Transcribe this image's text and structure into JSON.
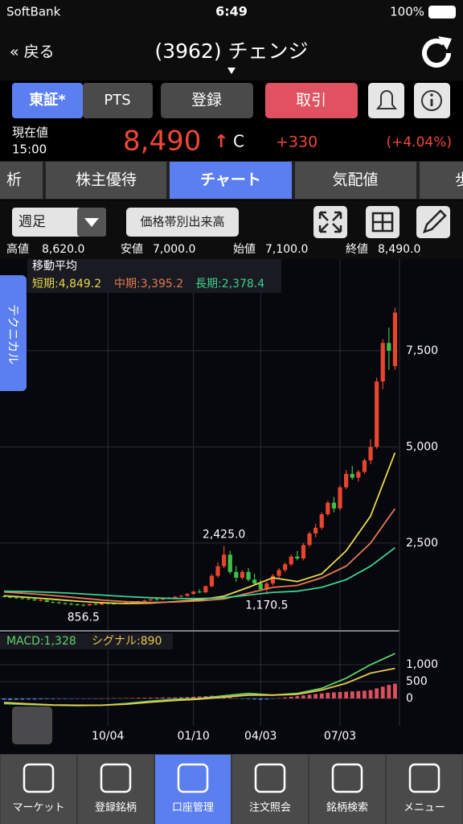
{
  "status_bar": {
    "carrier": "SoftBank",
    "time": "6:49",
    "battery": "100%"
  },
  "nav": {
    "back": "« 戻る",
    "title": "(3962) チェンジ"
  },
  "buttons": [
    "東証*",
    "PTS",
    "登録",
    "取引"
  ],
  "quote": {
    "label": "現在値",
    "time": "15:00",
    "price": "8,490",
    "arrow": "↑",
    "flag": "C",
    "change": "+330",
    "change_pct": "(+4.04%)"
  },
  "tabs": [
    "析",
    "株主優待",
    "チャート",
    "気配値",
    "歩"
  ],
  "toolbar": {
    "period": "週足",
    "volume_profile": "価格帯別出来高"
  },
  "summary": [
    [
      "高値",
      "8,620.0"
    ],
    [
      "安値",
      "7,000.0"
    ],
    [
      "始値",
      "7,100.0"
    ],
    [
      "終値",
      "8,490.0"
    ]
  ],
  "side_tab": "テクニカル",
  "chart_data": [
    {
      "type": "candlestick",
      "title": "移動平均",
      "x": [
        0,
        4,
        8,
        12,
        16,
        20,
        24,
        28,
        32,
        36,
        40,
        44,
        48,
        52,
        56,
        60,
        64
      ],
      "ohlc": [
        [
          1120,
          1150,
          1080,
          1100
        ],
        [
          1100,
          1130,
          1070,
          1090
        ],
        [
          1090,
          1110,
          1050,
          1070
        ],
        [
          1070,
          1100,
          1040,
          1060
        ],
        [
          1060,
          1080,
          1020,
          1040
        ],
        [
          1040,
          1060,
          1000,
          1010
        ],
        [
          1010,
          1040,
          980,
          1020
        ],
        [
          1020,
          1030,
          960,
          970
        ],
        [
          970,
          1000,
          940,
          960
        ],
        [
          960,
          980,
          920,
          940
        ],
        [
          940,
          960,
          900,
          920
        ],
        [
          920,
          950,
          890,
          910
        ],
        [
          910,
          930,
          870,
          900
        ],
        [
          900,
          920,
          856.5,
          880
        ],
        [
          880,
          930,
          870,
          920
        ],
        [
          920,
          940,
          890,
          900
        ],
        [
          900,
          950,
          890,
          940
        ],
        [
          940,
          960,
          910,
          930
        ],
        [
          930,
          950,
          900,
          920
        ],
        [
          920,
          960,
          910,
          950
        ],
        [
          950,
          980,
          930,
          960
        ],
        [
          960,
          990,
          940,
          970
        ],
        [
          970,
          1000,
          950,
          990
        ],
        [
          990,
          1030,
          970,
          1010
        ],
        [
          1010,
          1050,
          1000,
          1040
        ],
        [
          1040,
          1070,
          1010,
          1030
        ],
        [
          1030,
          1080,
          1020,
          1070
        ],
        [
          1070,
          1100,
          1040,
          1060
        ],
        [
          1060,
          1120,
          1050,
          1110
        ],
        [
          1110,
          1150,
          1090,
          1130
        ],
        [
          1130,
          1200,
          1110,
          1180
        ],
        [
          1180,
          1260,
          1160,
          1240
        ],
        [
          1240,
          1300,
          1200,
          1220
        ],
        [
          1220,
          1400,
          1200,
          1380
        ],
        [
          1380,
          1700,
          1350,
          1650
        ],
        [
          1650,
          2000,
          1600,
          1900
        ],
        [
          1900,
          2425,
          1850,
          2200
        ],
        [
          2200,
          2300,
          1700,
          1750
        ],
        [
          1750,
          1900,
          1500,
          1600
        ],
        [
          1600,
          1800,
          1550,
          1750
        ],
        [
          1750,
          1850,
          1500,
          1550
        ],
        [
          1550,
          1700,
          1400,
          1450
        ],
        [
          1450,
          1550,
          1250,
          1300
        ],
        [
          1300,
          1500,
          1170.5,
          1450
        ],
        [
          1450,
          1700,
          1400,
          1650
        ],
        [
          1650,
          1850,
          1600,
          1800
        ],
        [
          1800,
          2000,
          1750,
          1950
        ],
        [
          1950,
          2200,
          1900,
          2150
        ],
        [
          2150,
          2300,
          2050,
          2100
        ],
        [
          2100,
          2500,
          2050,
          2450
        ],
        [
          2450,
          2800,
          2400,
          2750
        ],
        [
          2750,
          3000,
          2650,
          2900
        ],
        [
          2900,
          3300,
          2850,
          3250
        ],
        [
          3250,
          3600,
          3200,
          3550
        ],
        [
          3550,
          3700,
          3300,
          3400
        ],
        [
          3400,
          4000,
          3350,
          3950
        ],
        [
          3950,
          4400,
          3900,
          4300
        ],
        [
          4300,
          4500,
          4150,
          4200
        ],
        [
          4200,
          4400,
          4100,
          4350
        ],
        [
          4350,
          4700,
          4300,
          4650
        ],
        [
          4650,
          5200,
          4550,
          5000
        ],
        [
          5000,
          6800,
          4950,
          6700
        ],
        [
          6700,
          7800,
          6500,
          7700
        ],
        [
          7700,
          8100,
          7000,
          7500
        ],
        [
          7100,
          8620,
          7000,
          8490
        ]
      ],
      "up_color": "#e8452e",
      "down_color": "#3fbf4a",
      "series": [
        {
          "name": "短期:4,849.2",
          "color": "#e6d84a",
          "values": [
            1130,
            1090,
            1040,
            990,
            950,
            930,
            940,
            980,
            1030,
            1120,
            1350,
            1600,
            1500,
            1700,
            2300,
            3200,
            4849.2
          ]
        },
        {
          "name": "中期:3,395.2",
          "color": "#e07a50",
          "values": [
            1230,
            1190,
            1140,
            1080,
            1020,
            980,
            960,
            970,
            1000,
            1050,
            1200,
            1350,
            1400,
            1600,
            1900,
            2500,
            3395.2
          ]
        },
        {
          "name": "長期:2,378.4",
          "color": "#3ecf8e",
          "values": [
            1250,
            1240,
            1220,
            1190,
            1150,
            1110,
            1080,
            1060,
            1060,
            1080,
            1150,
            1220,
            1250,
            1350,
            1550,
            1900,
            2378.4
          ]
        }
      ],
      "xlim": [
        -0.66,
        64.6
      ],
      "ylim": [
        240,
        9880
      ],
      "yticks": [
        {
          "value": 2500,
          "label": "2,500"
        },
        {
          "value": 5000,
          "label": "5,000"
        },
        {
          "value": 7500,
          "label": "7,500"
        }
      ],
      "annotations": [
        {
          "index": 36,
          "value": 2425,
          "label": "2,425.0"
        },
        {
          "index": 13,
          "value": 856.5,
          "label": "856.5"
        },
        {
          "index": 43,
          "value": 1170.5,
          "label": "1,170.5"
        }
      ]
    },
    {
      "type": "macd",
      "x": [
        0,
        4,
        8,
        12,
        16,
        20,
        24,
        28,
        32,
        36,
        40,
        44,
        48,
        52,
        56,
        60,
        64
      ],
      "series": [
        {
          "name": "MACD:1,328",
          "color": "#5fd36a",
          "values": [
            -150,
            -180,
            -200,
            -210,
            -200,
            -150,
            -80,
            -30,
            0,
            80,
            150,
            100,
            150,
            300,
            600,
            1000,
            1328
          ]
        },
        {
          "name": "シグナル:890",
          "color": "#e8c84a",
          "values": [
            -120,
            -160,
            -190,
            -200,
            -200,
            -170,
            -110,
            -60,
            -20,
            40,
            100,
            100,
            120,
            250,
            450,
            750,
            890
          ]
        }
      ],
      "histogram": [
        -40,
        -45,
        -40,
        -35,
        -30,
        -30,
        -25,
        -20,
        -20,
        -15,
        -15,
        -10,
        -10,
        -10,
        -5,
        -5,
        0,
        5,
        10,
        10,
        15,
        15,
        20,
        20,
        25,
        25,
        30,
        30,
        30,
        35,
        40,
        50,
        60,
        70,
        80,
        70,
        60,
        30,
        10,
        -10,
        -20,
        -30,
        -40,
        -30,
        -10,
        10,
        30,
        50,
        70,
        90,
        110,
        130,
        150,
        170,
        180,
        190,
        200,
        210,
        220,
        230,
        250,
        300,
        350,
        400,
        438
      ],
      "pos_color": "#d9505e",
      "neg_color": "#4a7fd8",
      "xlim": [
        -0.66,
        64.6
      ],
      "ylim": [
        -810,
        1976
      ],
      "yticks": [
        0,
        500,
        {
          "value": 1000,
          "label": "1,000"
        }
      ],
      "xticks": [
        {
          "value": 17,
          "label": "10/04"
        },
        {
          "value": 31,
          "label": "01/10"
        },
        {
          "value": 42,
          "label": "04/03"
        },
        {
          "value": 55,
          "label": "07/03"
        }
      ]
    }
  ],
  "bottom_nav": [
    "マーケット",
    "登録銘柄",
    "口座管理",
    "注文照会",
    "銘柄検索",
    "メニュー"
  ]
}
